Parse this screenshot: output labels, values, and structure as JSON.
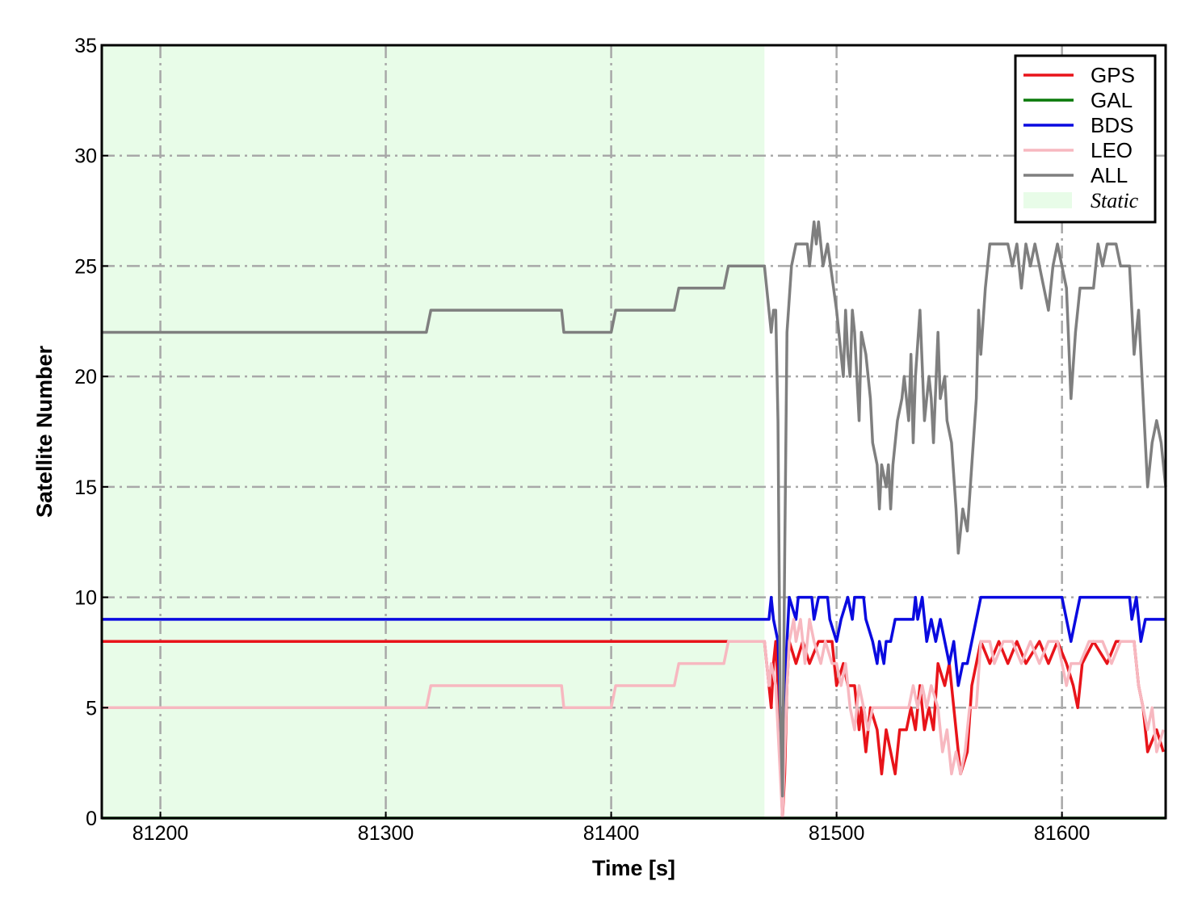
{
  "chart_data": {
    "type": "line",
    "xlabel": "Time [s]",
    "ylabel": "Satellite Number",
    "xlim": [
      81174,
      81646
    ],
    "ylim": [
      0,
      35
    ],
    "xticks": [
      81200,
      81300,
      81400,
      81500,
      81600
    ],
    "yticks": [
      0,
      5,
      10,
      15,
      20,
      25,
      30,
      35
    ],
    "grid": true,
    "grid_style": "dash-dot",
    "legend_position": "top-right",
    "shaded_region": {
      "name": "Static",
      "x": [
        81174,
        81468
      ],
      "color": "#e8fce8"
    },
    "series": [
      {
        "name": "GPS",
        "color": "#e8141a",
        "points": [
          [
            81174,
            8
          ],
          [
            81468,
            8
          ],
          [
            81470,
            6
          ],
          [
            81471,
            5
          ],
          [
            81472,
            7
          ],
          [
            81473,
            8
          ],
          [
            81474,
            6
          ],
          [
            81475,
            3
          ],
          [
            81476,
            0
          ],
          [
            81477,
            2
          ],
          [
            81478,
            6
          ],
          [
            81479,
            8
          ],
          [
            81482,
            7
          ],
          [
            81485,
            8
          ],
          [
            81488,
            7
          ],
          [
            81492,
            8
          ],
          [
            81498,
            8
          ],
          [
            81500,
            6
          ],
          [
            81503,
            7
          ],
          [
            81505,
            6
          ],
          [
            81508,
            6
          ],
          [
            81510,
            4
          ],
          [
            81511,
            5
          ],
          [
            81513,
            3
          ],
          [
            81515,
            5
          ],
          [
            81518,
            4
          ],
          [
            81520,
            2
          ],
          [
            81522,
            4
          ],
          [
            81524,
            3
          ],
          [
            81526,
            2
          ],
          [
            81528,
            4
          ],
          [
            81531,
            4
          ],
          [
            81533,
            5
          ],
          [
            81535,
            4
          ],
          [
            81537,
            6
          ],
          [
            81539,
            4
          ],
          [
            81541,
            5
          ],
          [
            81543,
            4
          ],
          [
            81545,
            7
          ],
          [
            81548,
            6
          ],
          [
            81550,
            7
          ],
          [
            81553,
            4
          ],
          [
            81555,
            2
          ],
          [
            81558,
            3
          ],
          [
            81560,
            6
          ],
          [
            81562,
            7
          ],
          [
            81564,
            8
          ],
          [
            81568,
            7
          ],
          [
            81572,
            8
          ],
          [
            81576,
            7
          ],
          [
            81580,
            8
          ],
          [
            81584,
            7
          ],
          [
            81590,
            8
          ],
          [
            81594,
            7
          ],
          [
            81598,
            8
          ],
          [
            81602,
            7
          ],
          [
            81605,
            6
          ],
          [
            81607,
            5
          ],
          [
            81609,
            7
          ],
          [
            81614,
            8
          ],
          [
            81620,
            7
          ],
          [
            81624,
            8
          ],
          [
            81632,
            8
          ],
          [
            81634,
            6
          ],
          [
            81636,
            5
          ],
          [
            81638,
            3
          ],
          [
            81642,
            4
          ],
          [
            81645,
            3
          ]
        ]
      },
      {
        "name": "GAL",
        "color": "#0a7a0a",
        "points": [
          [
            81174,
            0
          ],
          [
            81646,
            0
          ]
        ]
      },
      {
        "name": "BDS",
        "color": "#0a0ae0",
        "points": [
          [
            81174,
            9
          ],
          [
            81470,
            9
          ],
          [
            81471,
            10
          ],
          [
            81472,
            9
          ],
          [
            81474,
            8
          ],
          [
            81475,
            5
          ],
          [
            81476,
            1
          ],
          [
            81477,
            6
          ],
          [
            81478,
            8
          ],
          [
            81479,
            10
          ],
          [
            81482,
            9
          ],
          [
            81483,
            10
          ],
          [
            81489,
            10
          ],
          [
            81490,
            9
          ],
          [
            81492,
            10
          ],
          [
            81496,
            10
          ],
          [
            81497,
            9
          ],
          [
            81500,
            8
          ],
          [
            81502,
            9
          ],
          [
            81505,
            10
          ],
          [
            81507,
            9
          ],
          [
            81508,
            10
          ],
          [
            81512,
            10
          ],
          [
            81513,
            9
          ],
          [
            81516,
            8
          ],
          [
            81518,
            7
          ],
          [
            81519,
            8
          ],
          [
            81521,
            7
          ],
          [
            81522,
            8
          ],
          [
            81524,
            8
          ],
          [
            81526,
            9
          ],
          [
            81534,
            9
          ],
          [
            81535,
            10
          ],
          [
            81536,
            9
          ],
          [
            81538,
            10
          ],
          [
            81540,
            8
          ],
          [
            81542,
            9
          ],
          [
            81544,
            8
          ],
          [
            81546,
            9
          ],
          [
            81548,
            8
          ],
          [
            81550,
            7
          ],
          [
            81552,
            8
          ],
          [
            81553,
            7
          ],
          [
            81554,
            6
          ],
          [
            81556,
            7
          ],
          [
            81558,
            7
          ],
          [
            81560,
            8
          ],
          [
            81562,
            9
          ],
          [
            81564,
            10
          ],
          [
            81600,
            10
          ],
          [
            81602,
            9
          ],
          [
            81604,
            8
          ],
          [
            81606,
            9
          ],
          [
            81608,
            10
          ],
          [
            81630,
            10
          ],
          [
            81631,
            9
          ],
          [
            81633,
            10
          ],
          [
            81635,
            8
          ],
          [
            81637,
            9
          ],
          [
            81646,
            9
          ]
        ]
      },
      {
        "name": "LEO",
        "color": "#f7b8c0",
        "points": [
          [
            81174,
            5
          ],
          [
            81318,
            5
          ],
          [
            81320,
            6
          ],
          [
            81378,
            6
          ],
          [
            81379,
            5
          ],
          [
            81400,
            5
          ],
          [
            81402,
            6
          ],
          [
            81428,
            6
          ],
          [
            81430,
            7
          ],
          [
            81450,
            7
          ],
          [
            81452,
            8
          ],
          [
            81468,
            8
          ],
          [
            81470,
            6
          ],
          [
            81471,
            7
          ],
          [
            81473,
            6
          ],
          [
            81474,
            4
          ],
          [
            81475,
            2
          ],
          [
            81476,
            0
          ],
          [
            81477,
            3
          ],
          [
            81478,
            6
          ],
          [
            81479,
            8
          ],
          [
            81481,
            9
          ],
          [
            81482,
            8
          ],
          [
            81484,
            9
          ],
          [
            81486,
            7
          ],
          [
            81488,
            9
          ],
          [
            81490,
            8
          ],
          [
            81493,
            7
          ],
          [
            81495,
            8
          ],
          [
            81498,
            7
          ],
          [
            81500,
            7
          ],
          [
            81502,
            6
          ],
          [
            81504,
            7
          ],
          [
            81506,
            5
          ],
          [
            81508,
            4
          ],
          [
            81510,
            6
          ],
          [
            81512,
            5
          ],
          [
            81514,
            4
          ],
          [
            81516,
            5
          ],
          [
            81520,
            5
          ],
          [
            81532,
            5
          ],
          [
            81534,
            6
          ],
          [
            81536,
            5
          ],
          [
            81538,
            6
          ],
          [
            81540,
            5
          ],
          [
            81542,
            6
          ],
          [
            81545,
            5
          ],
          [
            81547,
            3
          ],
          [
            81549,
            4
          ],
          [
            81551,
            2
          ],
          [
            81553,
            3
          ],
          [
            81555,
            2
          ],
          [
            81557,
            3
          ],
          [
            81559,
            5
          ],
          [
            81562,
            5
          ],
          [
            81564,
            8
          ],
          [
            81568,
            8
          ],
          [
            81570,
            7
          ],
          [
            81574,
            8
          ],
          [
            81578,
            8
          ],
          [
            81582,
            7
          ],
          [
            81586,
            8
          ],
          [
            81590,
            7
          ],
          [
            81594,
            8
          ],
          [
            81598,
            8
          ],
          [
            81600,
            7
          ],
          [
            81602,
            6
          ],
          [
            81604,
            7
          ],
          [
            81608,
            7
          ],
          [
            81612,
            8
          ],
          [
            81618,
            8
          ],
          [
            81622,
            7
          ],
          [
            81626,
            8
          ],
          [
            81632,
            8
          ],
          [
            81634,
            6
          ],
          [
            81636,
            5
          ],
          [
            81638,
            4
          ],
          [
            81640,
            5
          ],
          [
            81642,
            3
          ],
          [
            81645,
            4
          ]
        ]
      },
      {
        "name": "ALL",
        "color": "#7f7f7f",
        "points": [
          [
            81174,
            22
          ],
          [
            81318,
            22
          ],
          [
            81320,
            23
          ],
          [
            81378,
            23
          ],
          [
            81379,
            22
          ],
          [
            81400,
            22
          ],
          [
            81402,
            23
          ],
          [
            81428,
            23
          ],
          [
            81430,
            24
          ],
          [
            81450,
            24
          ],
          [
            81452,
            25
          ],
          [
            81468,
            25
          ],
          [
            81470,
            23
          ],
          [
            81471,
            22
          ],
          [
            81472,
            23
          ],
          [
            81473,
            23
          ],
          [
            81474,
            18
          ],
          [
            81475,
            5
          ],
          [
            81476,
            1
          ],
          [
            81477,
            12
          ],
          [
            81478,
            22
          ],
          [
            81480,
            25
          ],
          [
            81482,
            26
          ],
          [
            81487,
            26
          ],
          [
            81488,
            25
          ],
          [
            81490,
            27
          ],
          [
            81491,
            26
          ],
          [
            81492,
            27
          ],
          [
            81494,
            25
          ],
          [
            81496,
            26
          ],
          [
            81500,
            23
          ],
          [
            81502,
            21
          ],
          [
            81503,
            20
          ],
          [
            81504,
            23
          ],
          [
            81505,
            21
          ],
          [
            81506,
            20
          ],
          [
            81507,
            23
          ],
          [
            81508,
            22
          ],
          [
            81510,
            18
          ],
          [
            81511,
            22
          ],
          [
            81513,
            21
          ],
          [
            81515,
            19
          ],
          [
            81516,
            17
          ],
          [
            81518,
            16
          ],
          [
            81519,
            14
          ],
          [
            81520,
            16
          ],
          [
            81522,
            15
          ],
          [
            81523,
            16
          ],
          [
            81524,
            14
          ],
          [
            81525,
            16
          ],
          [
            81527,
            18
          ],
          [
            81529,
            19
          ],
          [
            81530,
            20
          ],
          [
            81531,
            19
          ],
          [
            81532,
            18
          ],
          [
            81533,
            21
          ],
          [
            81534,
            17
          ],
          [
            81535,
            20
          ],
          [
            81537,
            23
          ],
          [
            81539,
            18
          ],
          [
            81541,
            20
          ],
          [
            81542,
            19
          ],
          [
            81543,
            17
          ],
          [
            81545,
            22
          ],
          [
            81546,
            19
          ],
          [
            81548,
            20
          ],
          [
            81549,
            18
          ],
          [
            81551,
            17
          ],
          [
            81553,
            14
          ],
          [
            81554,
            12
          ],
          [
            81556,
            14
          ],
          [
            81558,
            13
          ],
          [
            81560,
            16
          ],
          [
            81562,
            19
          ],
          [
            81563,
            23
          ],
          [
            81564,
            21
          ],
          [
            81566,
            24
          ],
          [
            81568,
            26
          ],
          [
            81576,
            26
          ],
          [
            81578,
            25
          ],
          [
            81580,
            26
          ],
          [
            81582,
            24
          ],
          [
            81584,
            26
          ],
          [
            81586,
            25
          ],
          [
            81588,
            26
          ],
          [
            81590,
            25
          ],
          [
            81592,
            24
          ],
          [
            81594,
            23
          ],
          [
            81596,
            25
          ],
          [
            81598,
            26
          ],
          [
            81600,
            25
          ],
          [
            81602,
            24
          ],
          [
            81604,
            19
          ],
          [
            81606,
            22
          ],
          [
            81608,
            24
          ],
          [
            81614,
            24
          ],
          [
            81616,
            26
          ],
          [
            81618,
            25
          ],
          [
            81620,
            26
          ],
          [
            81624,
            26
          ],
          [
            81626,
            25
          ],
          [
            81630,
            25
          ],
          [
            81632,
            21
          ],
          [
            81634,
            23
          ],
          [
            81636,
            19
          ],
          [
            81638,
            15
          ],
          [
            81640,
            17
          ],
          [
            81642,
            18
          ],
          [
            81644,
            17
          ],
          [
            81646,
            15
          ]
        ]
      }
    ]
  }
}
